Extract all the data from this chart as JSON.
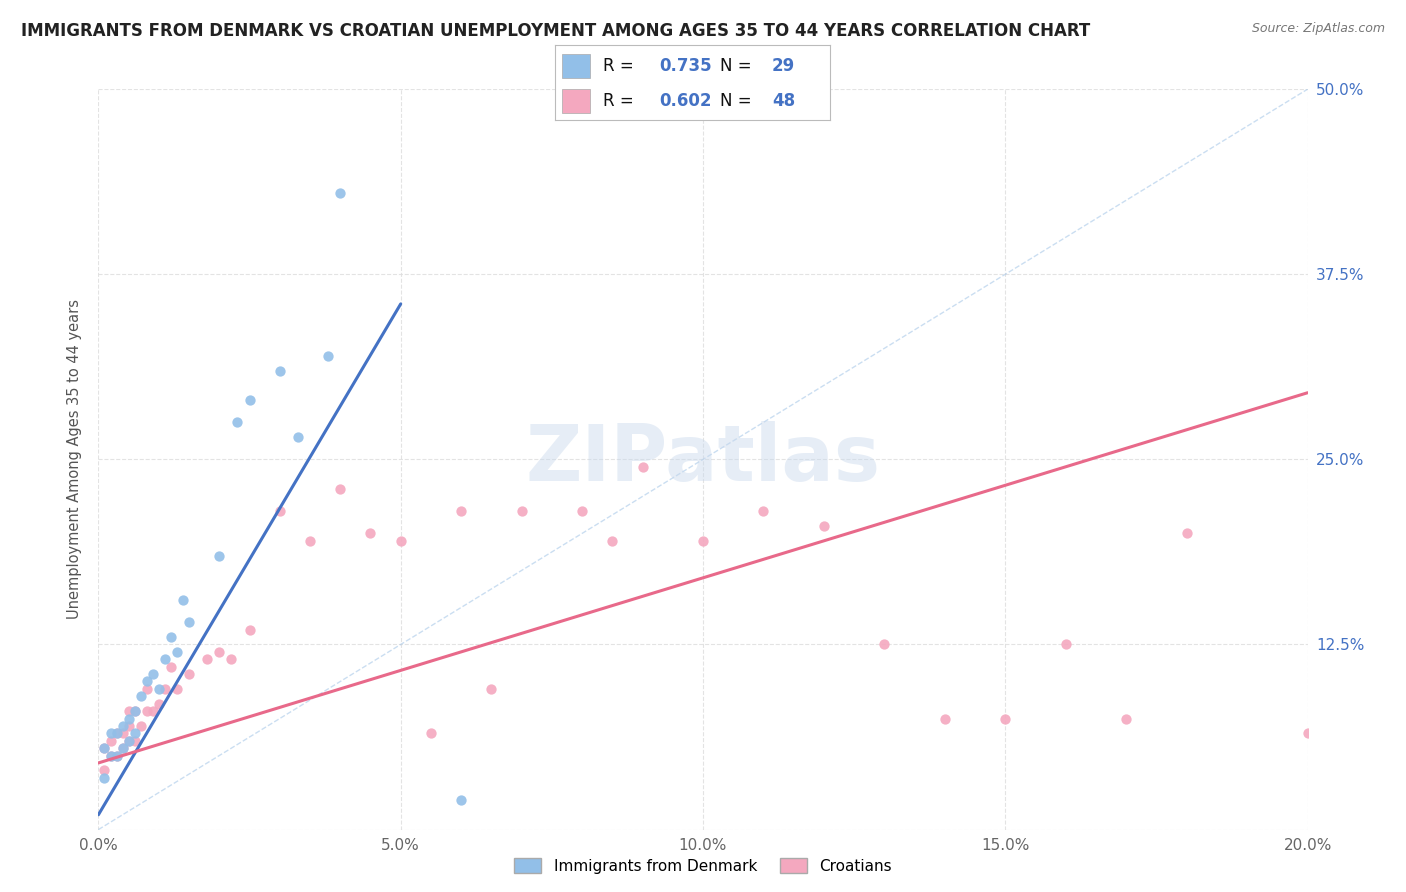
{
  "title": "IMMIGRANTS FROM DENMARK VS CROATIAN UNEMPLOYMENT AMONG AGES 35 TO 44 YEARS CORRELATION CHART",
  "source": "Source: ZipAtlas.com",
  "ylabel": "Unemployment Among Ages 35 to 44 years",
  "watermark": "ZIPatlas",
  "xlim": [
    0.0,
    0.2
  ],
  "ylim": [
    0.0,
    0.5
  ],
  "xticks": [
    0.0,
    0.05,
    0.1,
    0.15,
    0.2
  ],
  "xtick_labels": [
    "0.0%",
    "5.0%",
    "10.0%",
    "15.0%",
    "20.0%"
  ],
  "yticks": [
    0.0,
    0.125,
    0.25,
    0.375,
    0.5
  ],
  "ytick_labels": [
    "",
    "12.5%",
    "25.0%",
    "37.5%",
    "50.0%"
  ],
  "series1_color": "#92bfe8",
  "series2_color": "#f4a8bf",
  "series1_line_color": "#4472c4",
  "series2_line_color": "#e8698a",
  "series1_label": "Immigrants from Denmark",
  "series2_label": "Croatians",
  "R1": 0.735,
  "N1": 29,
  "R2": 0.602,
  "N2": 48,
  "legend_R_N_color": "#4472c4",
  "background_color": "#ffffff",
  "grid_color": "#cccccc",
  "title_color": "#222222",
  "series1_x": [
    0.001,
    0.001,
    0.002,
    0.002,
    0.003,
    0.003,
    0.004,
    0.004,
    0.005,
    0.005,
    0.006,
    0.006,
    0.007,
    0.008,
    0.009,
    0.01,
    0.011,
    0.012,
    0.013,
    0.014,
    0.015,
    0.02,
    0.023,
    0.025,
    0.03,
    0.033,
    0.038,
    0.04,
    0.06
  ],
  "series1_y": [
    0.035,
    0.055,
    0.05,
    0.065,
    0.05,
    0.065,
    0.055,
    0.07,
    0.06,
    0.075,
    0.065,
    0.08,
    0.09,
    0.1,
    0.105,
    0.095,
    0.115,
    0.13,
    0.12,
    0.155,
    0.14,
    0.185,
    0.275,
    0.29,
    0.31,
    0.265,
    0.32,
    0.43,
    0.02
  ],
  "series2_x": [
    0.001,
    0.001,
    0.002,
    0.002,
    0.003,
    0.003,
    0.004,
    0.004,
    0.005,
    0.005,
    0.005,
    0.006,
    0.006,
    0.007,
    0.008,
    0.008,
    0.009,
    0.01,
    0.011,
    0.012,
    0.013,
    0.015,
    0.018,
    0.02,
    0.022,
    0.025,
    0.03,
    0.035,
    0.04,
    0.045,
    0.05,
    0.055,
    0.06,
    0.065,
    0.07,
    0.08,
    0.085,
    0.09,
    0.1,
    0.11,
    0.12,
    0.13,
    0.14,
    0.15,
    0.16,
    0.17,
    0.18,
    0.2
  ],
  "series2_y": [
    0.04,
    0.055,
    0.05,
    0.06,
    0.05,
    0.065,
    0.055,
    0.065,
    0.06,
    0.07,
    0.08,
    0.06,
    0.08,
    0.07,
    0.08,
    0.095,
    0.08,
    0.085,
    0.095,
    0.11,
    0.095,
    0.105,
    0.115,
    0.12,
    0.115,
    0.135,
    0.215,
    0.195,
    0.23,
    0.2,
    0.195,
    0.065,
    0.215,
    0.095,
    0.215,
    0.215,
    0.195,
    0.245,
    0.195,
    0.215,
    0.205,
    0.125,
    0.075,
    0.075,
    0.125,
    0.075,
    0.2,
    0.065
  ],
  "blue_line_x": [
    0.0,
    0.05
  ],
  "blue_line_y": [
    0.01,
    0.355
  ],
  "pink_line_x": [
    0.0,
    0.2
  ],
  "pink_line_y": [
    0.045,
    0.295
  ],
  "ref_line_x": [
    0.0,
    0.2
  ],
  "ref_line_y": [
    0.0,
    0.5
  ]
}
